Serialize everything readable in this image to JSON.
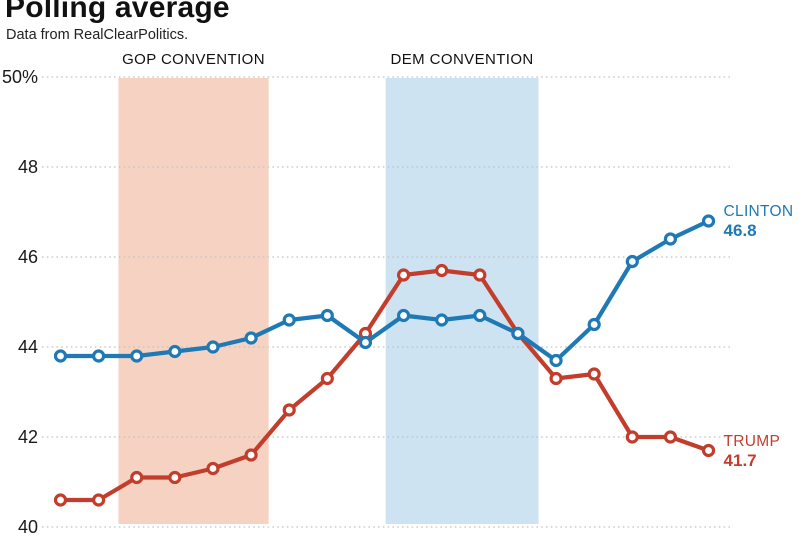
{
  "chart_data": {
    "type": "line",
    "title": "Polling average",
    "subtitle": "Data from RealClearPolitics.",
    "ylim": [
      40,
      50
    ],
    "grid": "dotted-horizontal",
    "yticks": [
      {
        "value": 50,
        "label": "50%"
      },
      {
        "value": 48,
        "label": "48"
      },
      {
        "value": 46,
        "label": "46"
      },
      {
        "value": 44,
        "label": "44"
      },
      {
        "value": 42,
        "label": "42"
      },
      {
        "value": 40,
        "label": "40"
      }
    ],
    "x_count": 18,
    "bands": [
      {
        "label": "GOP CONVENTION",
        "start_index": 1.52,
        "end_index": 5.46,
        "color": "#f6d2c3"
      },
      {
        "label": "DEM CONVENTION",
        "start_index": 8.53,
        "end_index": 12.54,
        "color": "#cee3f2"
      }
    ],
    "series": [
      {
        "name": "TRUMP",
        "color": "#c33d2c",
        "end_label_value": "41.7",
        "values": [
          40.6,
          40.6,
          41.1,
          41.1,
          41.3,
          41.6,
          42.6,
          43.3,
          44.3,
          45.6,
          45.7,
          45.6,
          44.3,
          43.3,
          43.4,
          42.0,
          42.0,
          41.7
        ]
      },
      {
        "name": "CLINTON",
        "color": "#1e79b5",
        "end_label_value": "46.8",
        "values": [
          43.8,
          43.8,
          43.8,
          43.9,
          44.0,
          44.2,
          44.6,
          44.7,
          44.1,
          44.7,
          44.6,
          44.7,
          44.3,
          43.7,
          44.5,
          45.9,
          46.4,
          46.8
        ]
      }
    ],
    "legend_position": "end-of-line-labels",
    "colors": {
      "gridline": "#c2c2c2",
      "title_text": "#111111",
      "subtitle_text": "#222222",
      "marker_fill": "#ffffff"
    }
  }
}
